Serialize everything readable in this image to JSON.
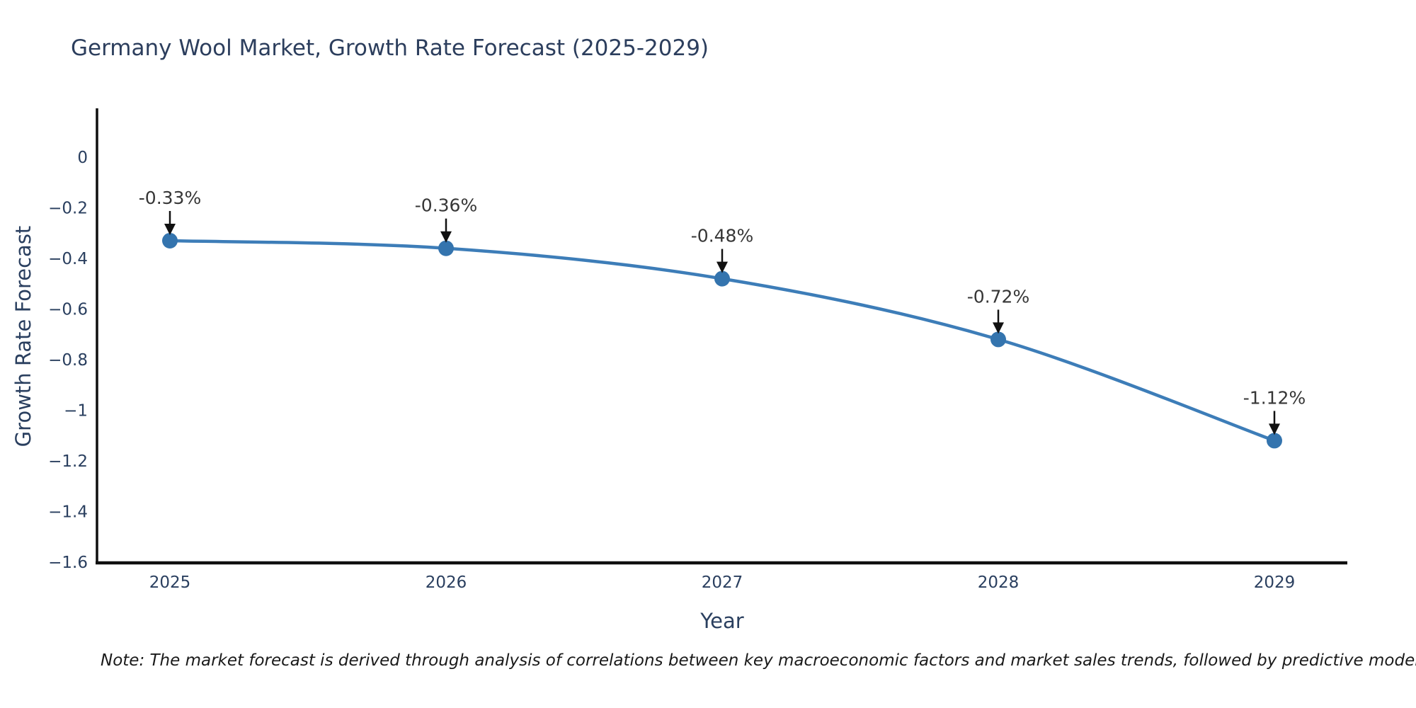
{
  "page": {
    "background": "#ffffff"
  },
  "chart_data": {
    "type": "line",
    "title": "Germany Wool Market, Growth Rate Forecast (2025-2029)",
    "xlabel": "Year",
    "ylabel": "Growth Rate Forecast",
    "categories": [
      "2025",
      "2026",
      "2027",
      "2028",
      "2029"
    ],
    "series": [
      {
        "name": "Growth Rate Forecast",
        "values": [
          -0.33,
          -0.36,
          -0.48,
          -0.72,
          -1.12
        ]
      }
    ],
    "point_labels": [
      "-0.33%",
      "-0.36%",
      "-0.48%",
      "-0.72%",
      "-1.12%"
    ],
    "y_ticks": [
      0,
      -0.2,
      -0.4,
      -0.6,
      -0.8,
      -1,
      -1.2,
      -1.4,
      -1.6
    ],
    "y_tick_labels": [
      "0",
      "−0.2",
      "−0.4",
      "−0.6",
      "−0.8",
      "−1",
      "−1.2",
      "−1.4",
      "−1.6"
    ],
    "ylim": [
      -1.6,
      0.2
    ],
    "grid": false,
    "legend": "none",
    "annotation_style": "down-arrow",
    "colors": {
      "line": "#3d7db8",
      "marker": "#3474ae",
      "axis": "#0f0f0f",
      "tick_text": "#2a3f5f",
      "annotation_text": "#363636"
    }
  },
  "footnote": "Note: The market forecast is derived through analysis of correlations between key macroeconomic factors and market sales trends, followed by predictive modeling to project future sa"
}
